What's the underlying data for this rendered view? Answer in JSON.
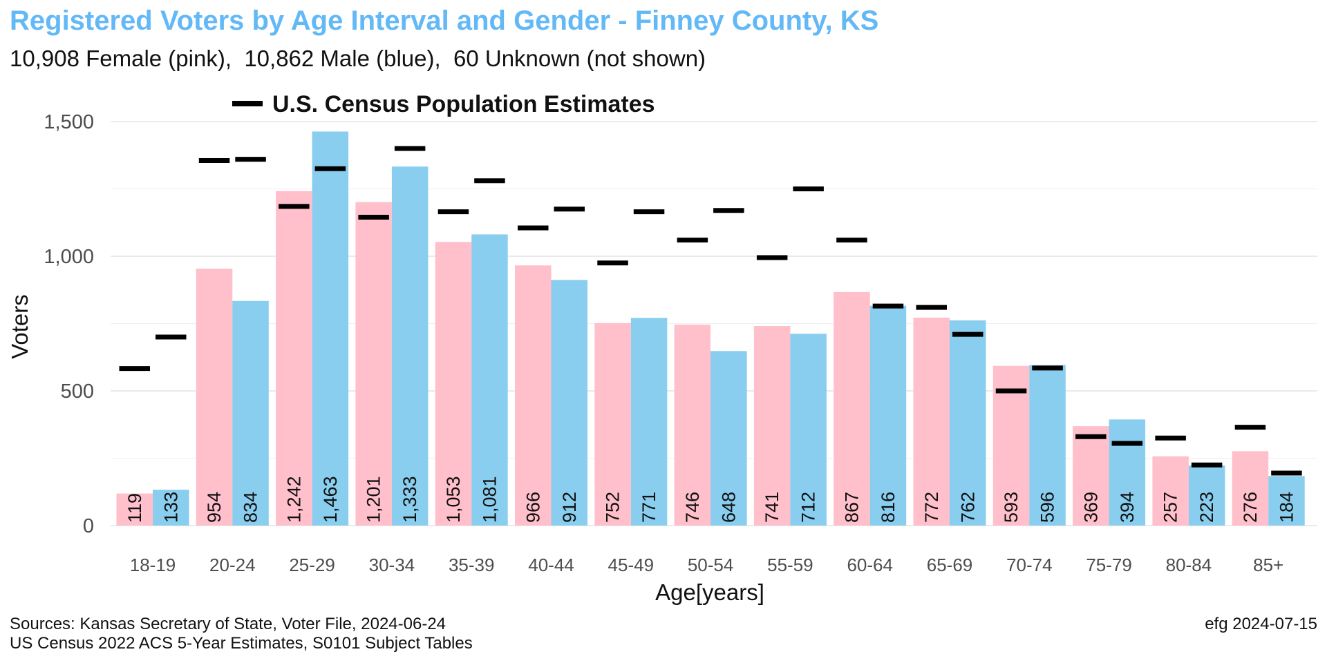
{
  "chart_data": {
    "type": "bar",
    "title": "Registered Voters by Age Interval and Gender - Finney County, KS",
    "subtitle": "10,908 Female (pink),  10,862 Male (blue),  60 Unknown (not shown)",
    "xlabel": "Age[years]",
    "ylabel": "Voters",
    "ylim": [
      0,
      1500
    ],
    "yticks": [
      0,
      500,
      1000,
      1500
    ],
    "ytick_labels": [
      "0",
      "500",
      "1,000",
      "1,500"
    ],
    "grid": true,
    "categories": [
      "18-19",
      "20-24",
      "25-29",
      "30-34",
      "35-39",
      "40-44",
      "45-49",
      "50-54",
      "55-59",
      "60-64",
      "65-69",
      "70-74",
      "75-79",
      "80-84",
      "85+"
    ],
    "series": [
      {
        "color": "#ffc0cb",
        "values": [
          119,
          954,
          1242,
          1201,
          1053,
          966,
          752,
          746,
          741,
          867,
          772,
          593,
          369,
          257,
          276
        ],
        "labels": [
          "119",
          "954",
          "1,242",
          "1,201",
          "1,053",
          "966",
          "752",
          "746",
          "741",
          "867",
          "772",
          "593",
          "369",
          "257",
          "276"
        ]
      },
      {
        "color": "#89cdef",
        "values": [
          133,
          834,
          1463,
          1333,
          1081,
          912,
          771,
          648,
          712,
          816,
          762,
          596,
          394,
          223,
          184
        ],
        "labels": [
          "133",
          "834",
          "1,463",
          "1,333",
          "1,081",
          "912",
          "771",
          "648",
          "712",
          "816",
          "762",
          "596",
          "394",
          "223",
          "184"
        ]
      }
    ],
    "census_estimates": {
      "name": "U.S. Census Population Estimates",
      "color": "#000000",
      "female": [
        583,
        1355,
        1185,
        1145,
        1165,
        1105,
        975,
        1060,
        995,
        1060,
        810,
        500,
        330,
        325,
        365
      ],
      "male": [
        700,
        1360,
        1325,
        1400,
        1280,
        1175,
        1165,
        1170,
        1250,
        815,
        710,
        585,
        305,
        225,
        195
      ]
    },
    "legend_position": "top"
  },
  "footer": {
    "source_line1": "Sources: Kansas Secretary of State, Voter File, 2024-06-24",
    "source_line2": "US Census 2022 ACS 5-Year Estimates, S0101 Subject Tables",
    "credit": "efg 2024-07-15"
  }
}
